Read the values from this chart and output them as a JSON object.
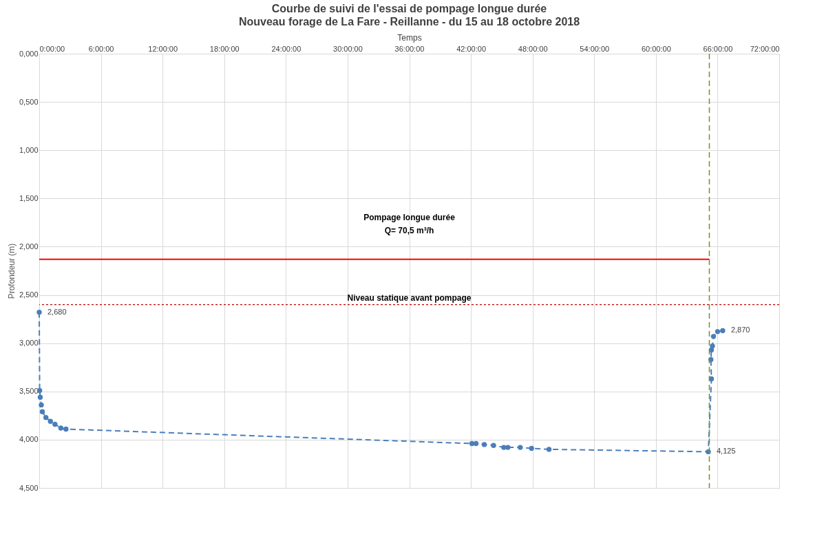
{
  "chart_data": {
    "type": "line",
    "title": "Courbe de suivi de l'essai de pompage longue durée",
    "subtitle": "Nouveau forage de La Fare - Reillanne - du 15 au 18 octobre 2018",
    "xlabel": "Temps",
    "ylabel": "Profondeur (m)",
    "xlim": [
      0,
      72
    ],
    "ylim": [
      4.5,
      0
    ],
    "xticks": [
      {
        "value": 0,
        "label": "0:00:00"
      },
      {
        "value": 6,
        "label": "6:00:00"
      },
      {
        "value": 12,
        "label": "12:00:00"
      },
      {
        "value": 18,
        "label": "18:00:00"
      },
      {
        "value": 24,
        "label": "24:00:00"
      },
      {
        "value": 30,
        "label": "30:00:00"
      },
      {
        "value": 36,
        "label": "36:00:00"
      },
      {
        "value": 42,
        "label": "42:00:00"
      },
      {
        "value": 48,
        "label": "48:00:00"
      },
      {
        "value": 54,
        "label": "54:00:00"
      },
      {
        "value": 60,
        "label": "60:00:00"
      },
      {
        "value": 66,
        "label": "66:00:00"
      },
      {
        "value": 72,
        "label": "72:00:00"
      }
    ],
    "yticks": [
      {
        "value": 0,
        "label": "0,000"
      },
      {
        "value": 0.5,
        "label": "0,500"
      },
      {
        "value": 1,
        "label": "1,000"
      },
      {
        "value": 1.5,
        "label": "1,500"
      },
      {
        "value": 2,
        "label": "2,000"
      },
      {
        "value": 2.5,
        "label": "2,500"
      },
      {
        "value": 3,
        "label": "3,000"
      },
      {
        "value": 3.5,
        "label": "3,500"
      },
      {
        "value": 4,
        "label": "4,000"
      },
      {
        "value": 4.5,
        "label": "4,500"
      }
    ],
    "grid": true,
    "series": [
      {
        "color": "#4a7ebb",
        "marker": "circle",
        "line_style": "dashed",
        "x": [
          0,
          0.04,
          0.1,
          0.2,
          0.3,
          0.65,
          1.09,
          1.53,
          2.1,
          2.6,
          42.1,
          42.5,
          43.3,
          44.2,
          45.2,
          45.6,
          46.8,
          47.9,
          49.6,
          65.1,
          65.4,
          65.35,
          65.4,
          65.5,
          65.6,
          66.0,
          66.5
        ],
        "values": [
          2.68,
          3.49,
          3.56,
          3.64,
          3.71,
          3.77,
          3.81,
          3.84,
          3.88,
          3.89,
          4.04,
          4.04,
          4.05,
          4.06,
          4.08,
          4.08,
          4.08,
          4.09,
          4.1,
          4.125,
          3.37,
          3.17,
          3.07,
          3.03,
          2.93,
          2.88,
          2.87
        ],
        "value_labels": [
          "2,680",
          null,
          null,
          null,
          null,
          null,
          null,
          null,
          null,
          null,
          null,
          null,
          null,
          null,
          null,
          null,
          null,
          null,
          null,
          "4,125",
          null,
          null,
          null,
          null,
          null,
          null,
          "2,870"
        ]
      },
      {
        "type": "line",
        "color": "#ff0000",
        "marker": "none",
        "line_style": "solid",
        "x": [
          0,
          65.2
        ],
        "values": [
          2.13,
          2.13
        ]
      }
    ],
    "ref_lines": [
      {
        "axis": "y",
        "value": 2.6,
        "label": "Niveau statique avant pompage",
        "color": "#c00000",
        "line_style": "dotted"
      },
      {
        "axis": "x",
        "value": 65.2,
        "label": null,
        "color": "#77933c",
        "line_style": "dashed"
      }
    ],
    "annotations": [
      "Pompage longue durée",
      "Q= 70,5 m³/h"
    ]
  }
}
